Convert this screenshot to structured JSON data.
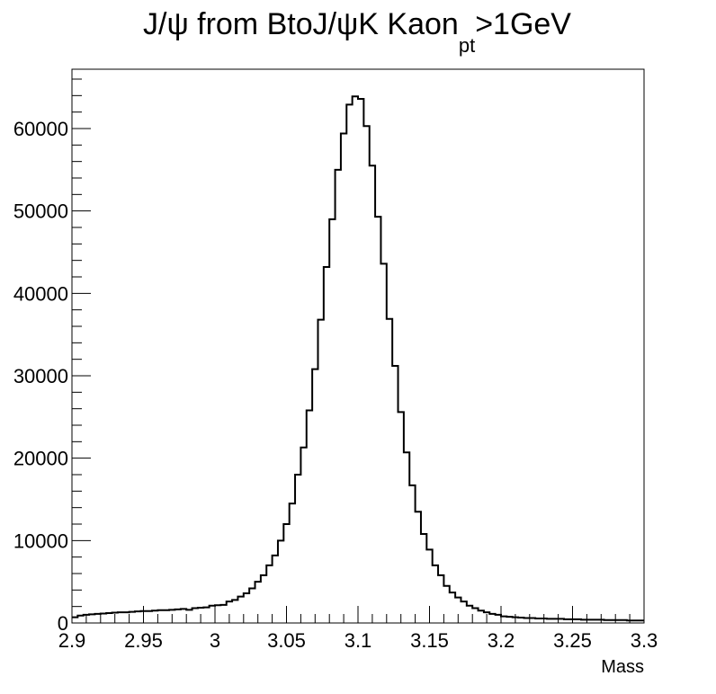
{
  "chart_data": {
    "type": "histogram",
    "title": {
      "main": "J/ψ from BtoJ/ψK Kaon",
      "subscript": "pt",
      "suffix": ">1GeV"
    },
    "xlabel": "Mass",
    "ylabel": "",
    "xlim": [
      2.9,
      3.3
    ],
    "ylim": [
      0,
      67200
    ],
    "x_ticks": [
      "2.9",
      "2.95",
      "3",
      "3.05",
      "3.1",
      "3.15",
      "3.2",
      "3.25",
      "3.3"
    ],
    "y_ticks": [
      "0",
      "10000",
      "20000",
      "30000",
      "40000",
      "50000",
      "60000"
    ],
    "grid": false,
    "bin_width": 0.004,
    "bin_start": 2.9,
    "values": [
      700,
      900,
      1000,
      1050,
      1100,
      1150,
      1200,
      1250,
      1300,
      1300,
      1350,
      1400,
      1450,
      1450,
      1500,
      1550,
      1550,
      1600,
      1650,
      1700,
      1600,
      1800,
      1850,
      1900,
      2100,
      2150,
      2200,
      2600,
      2800,
      3200,
      3600,
      4200,
      5000,
      5800,
      7000,
      8200,
      10000,
      12000,
      14500,
      18000,
      21300,
      25800,
      30800,
      36800,
      43200,
      49000,
      55000,
      59400,
      62900,
      63900,
      63600,
      60300,
      55500,
      49300,
      43600,
      36900,
      31200,
      25600,
      20700,
      16700,
      13500,
      10800,
      8900,
      7000,
      5800,
      4500,
      3700,
      3100,
      2600,
      2100,
      1800,
      1500,
      1300,
      1100,
      1000,
      800,
      750,
      700,
      650,
      600,
      600,
      550,
      550,
      500,
      500,
      500,
      450,
      450,
      450,
      400,
      400,
      400,
      400,
      350,
      350,
      350,
      350,
      300,
      300,
      300
    ]
  }
}
